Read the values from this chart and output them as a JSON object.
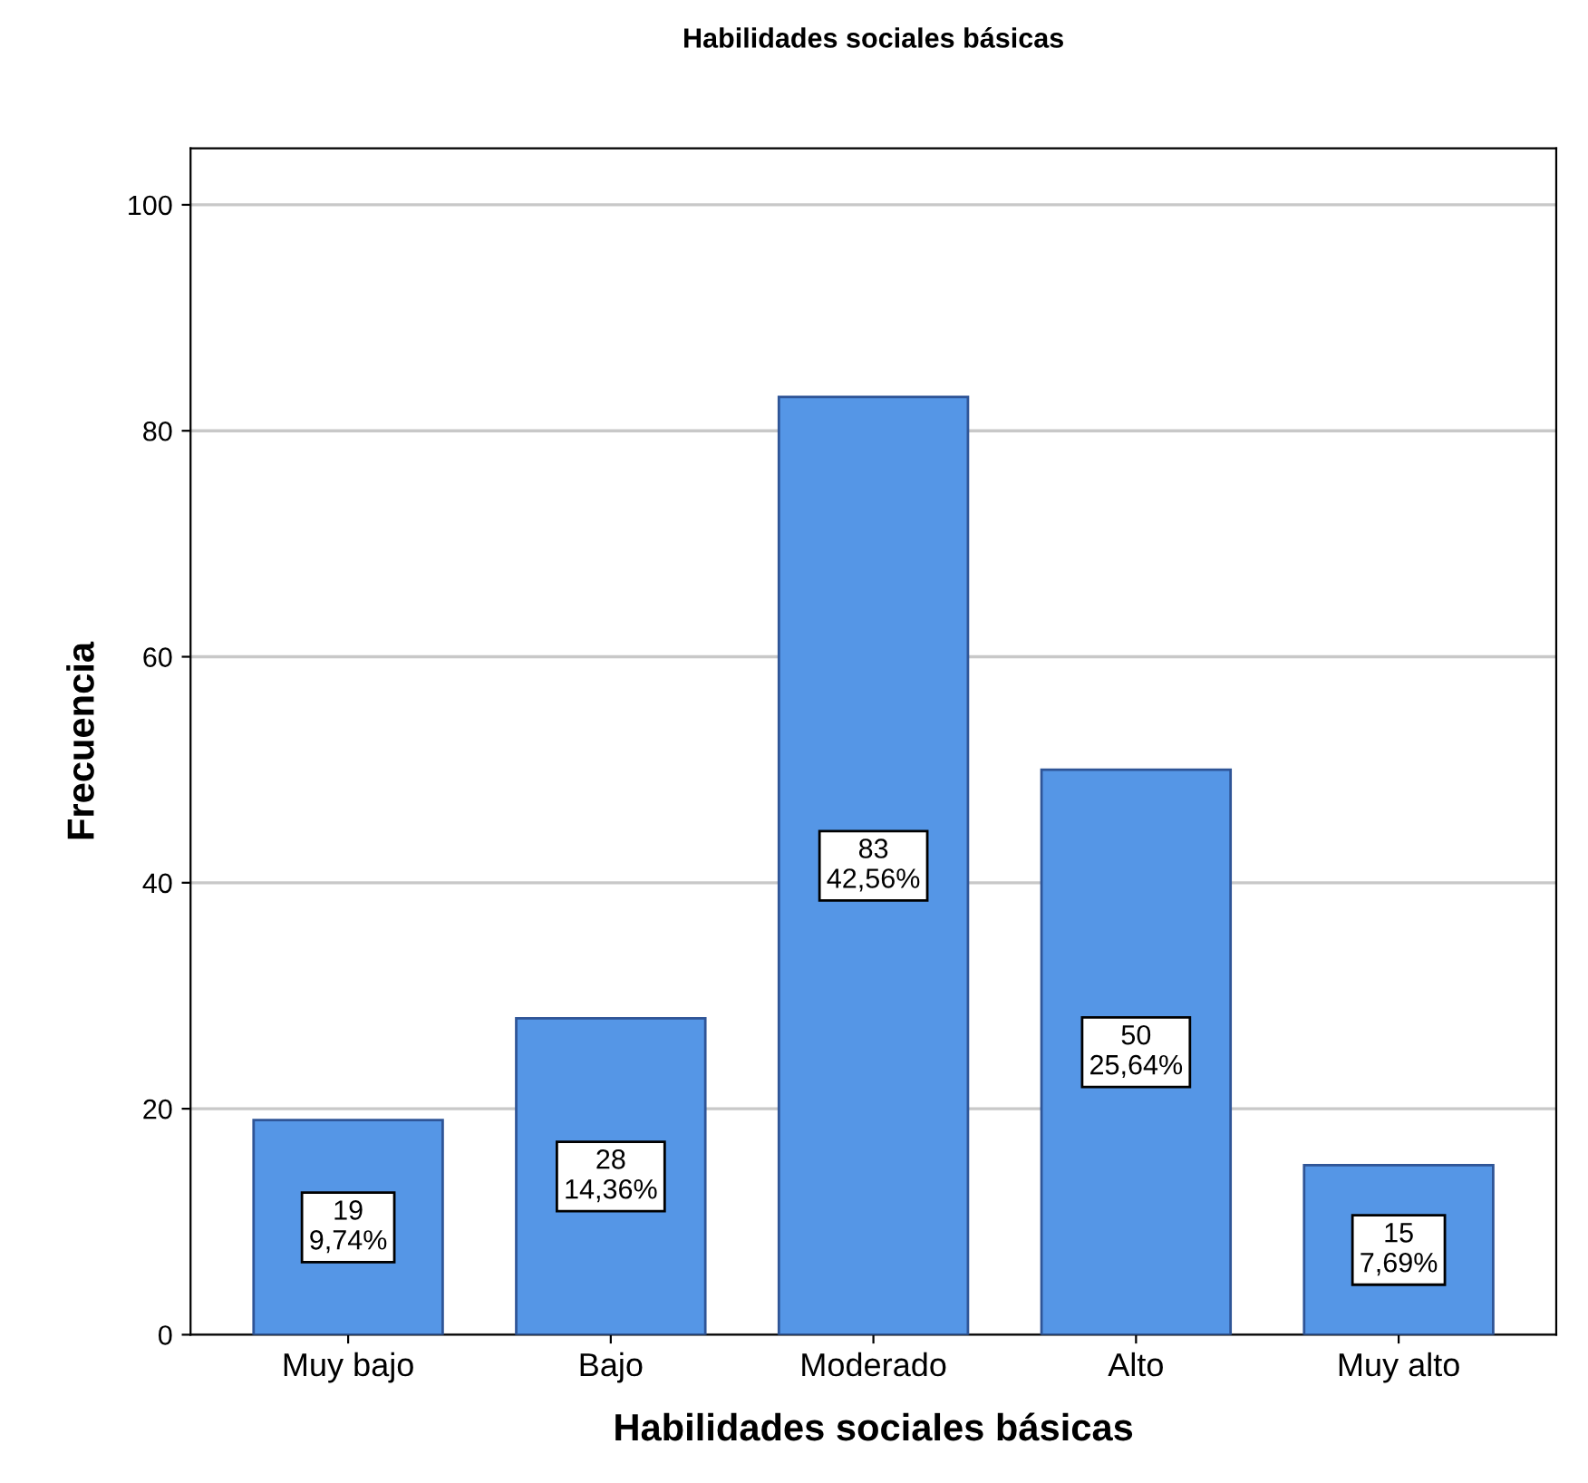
{
  "chart_data": {
    "type": "bar",
    "title": "Habilidades sociales básicas",
    "xlabel": "Habilidades sociales básicas",
    "ylabel": "Frecuencia",
    "categories": [
      "Muy bajo",
      "Bajo",
      "Moderado",
      "Alto",
      "Muy alto"
    ],
    "values": [
      19,
      28,
      83,
      50,
      15
    ],
    "value_labels": [
      "19\n9,74%",
      "28\n14,36%",
      "83\n42,56%",
      "50\n25,64%",
      "15\n7,69%"
    ],
    "color": "#5596e6",
    "ylim": [
      0,
      105
    ],
    "yticks": [
      0,
      20,
      40,
      60,
      80,
      100
    ],
    "grid": "y"
  }
}
